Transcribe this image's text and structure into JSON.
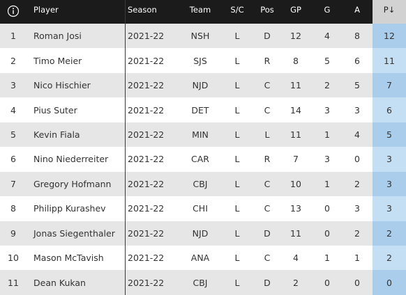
{
  "table": {
    "columns": [
      "Player",
      "Season",
      "Team",
      "S/C",
      "Pos",
      "GP",
      "G",
      "A",
      "P↓"
    ],
    "rows": [
      [
        1,
        "Roman Josi",
        "2021-22",
        "NSH",
        "L",
        "D",
        12,
        4,
        8,
        12
      ],
      [
        2,
        "Timo Meier",
        "2021-22",
        "SJS",
        "L",
        "R",
        8,
        5,
        6,
        11
      ],
      [
        3,
        "Nico Hischier",
        "2021-22",
        "NJD",
        "L",
        "C",
        11,
        2,
        5,
        7
      ],
      [
        4,
        "Pius Suter",
        "2021-22",
        "DET",
        "L",
        "C",
        14,
        3,
        3,
        6
      ],
      [
        5,
        "Kevin Fiala",
        "2021-22",
        "MIN",
        "L",
        "L",
        11,
        1,
        4,
        5
      ],
      [
        6,
        "Nino Niederreiter",
        "2021-22",
        "CAR",
        "L",
        "R",
        7,
        3,
        0,
        3
      ],
      [
        7,
        "Gregory Hofmann",
        "2021-22",
        "CBJ",
        "L",
        "C",
        10,
        1,
        2,
        3
      ],
      [
        8,
        "Philipp Kurashev",
        "2021-22",
        "CHI",
        "L",
        "C",
        13,
        0,
        3,
        3
      ],
      [
        9,
        "Jonas Siegenthaler",
        "2021-22",
        "NJD",
        "L",
        "D",
        11,
        0,
        2,
        2
      ],
      [
        10,
        "Mason McTavish",
        "2021-22",
        "ANA",
        "L",
        "C",
        4,
        1,
        1,
        2
      ],
      [
        11,
        "Dean Kukan",
        "2021-22",
        "CBJ",
        "L",
        "D",
        2,
        0,
        0,
        0
      ]
    ]
  }
}
